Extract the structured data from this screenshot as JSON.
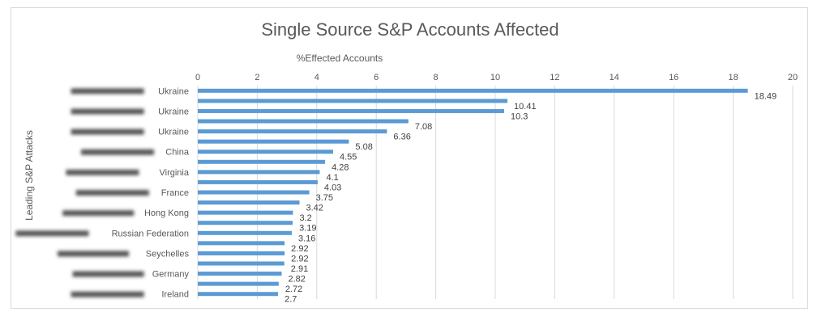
{
  "chart_data": {
    "type": "bar",
    "orientation": "horizontal",
    "title": "Single Source S&P Accounts Affected",
    "xlabel": "%Effected Accounts",
    "ylabel": "Leading S&P Attacks",
    "xlim": [
      0,
      20
    ],
    "x_ticks": [
      "0",
      "2",
      "4",
      "6",
      "8",
      "10",
      "12",
      "14",
      "16",
      "18",
      "20"
    ],
    "grid": true,
    "legend": "none",
    "bar_color": "#5b9bd5",
    "categories": [
      "Ukraine",
      "",
      "Ukraine",
      "",
      "Ukraine",
      "",
      "China",
      "",
      "Virginia",
      "",
      "France",
      "",
      "Hong Kong",
      "",
      "Russian Federation",
      "",
      "Seychelles",
      "",
      "Germany",
      "",
      "Ireland"
    ],
    "values": [
      18.49,
      10.41,
      10.3,
      7.08,
      6.36,
      5.08,
      4.55,
      4.28,
      4.1,
      4.03,
      3.75,
      3.42,
      3.2,
      3.19,
      3.16,
      2.92,
      2.92,
      2.91,
      2.82,
      2.72,
      2.7
    ],
    "data_labels": [
      "18.49",
      "10.41",
      "10.3",
      "7.08",
      "6.36",
      "5.08",
      "4.55",
      "4.28",
      "4.1",
      "4.03",
      "3.75",
      "3.42",
      "3.2",
      "3.19",
      "3.16",
      "2.92",
      "2.92",
      "2.91",
      "2.82",
      "2.72",
      "2.7"
    ]
  }
}
